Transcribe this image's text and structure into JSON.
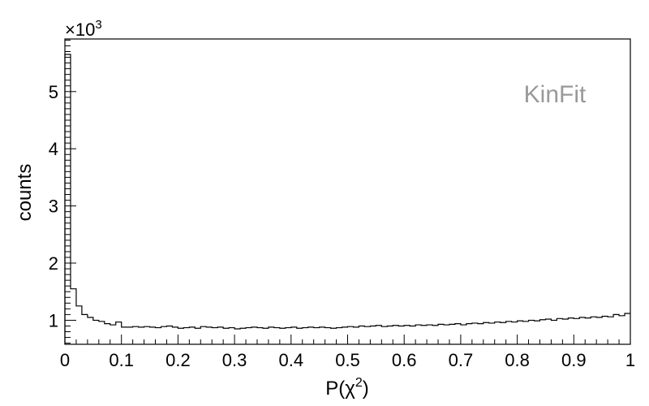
{
  "chart_data": {
    "type": "histogram",
    "xlabel": "P(χ²)",
    "xlabel_base": "P(χ",
    "xlabel_sup": "2",
    "xlabel_close": ")",
    "ylabel": "counts",
    "y_multiplier": "×10³",
    "y_multiplier_base": "×10",
    "y_multiplier_exp": "3",
    "annotation": "KinFit",
    "annotation_color": "#999999",
    "line_color": "#000000",
    "xlim": [
      0,
      1
    ],
    "ylim": [
      0.58,
      5.92
    ],
    "y_unit_scale": 1000,
    "x_ticks": [
      0,
      0.1,
      0.2,
      0.3,
      0.4,
      0.5,
      0.6,
      0.7,
      0.8,
      0.9,
      1
    ],
    "x_tick_labels": [
      "0",
      "0.1",
      "0.2",
      "0.3",
      "0.4",
      "0.5",
      "0.6",
      "0.7",
      "0.8",
      "0.9",
      "1"
    ],
    "y_ticks": [
      1,
      2,
      3,
      4,
      5
    ],
    "y_tick_labels": [
      "1",
      "2",
      "3",
      "4",
      "5"
    ],
    "bin_edges_start": 0,
    "bin_width": 0.01,
    "values": [
      5.65,
      1.55,
      1.25,
      1.1,
      1.05,
      1.0,
      0.98,
      0.94,
      0.92,
      0.97,
      0.88,
      0.88,
      0.89,
      0.88,
      0.89,
      0.88,
      0.87,
      0.89,
      0.9,
      0.88,
      0.86,
      0.87,
      0.88,
      0.86,
      0.89,
      0.88,
      0.87,
      0.88,
      0.86,
      0.87,
      0.85,
      0.86,
      0.87,
      0.88,
      0.87,
      0.86,
      0.88,
      0.87,
      0.86,
      0.87,
      0.88,
      0.86,
      0.87,
      0.88,
      0.87,
      0.88,
      0.87,
      0.86,
      0.87,
      0.88,
      0.89,
      0.88,
      0.9,
      0.89,
      0.9,
      0.91,
      0.89,
      0.9,
      0.91,
      0.9,
      0.91,
      0.9,
      0.92,
      0.91,
      0.92,
      0.91,
      0.93,
      0.92,
      0.93,
      0.94,
      0.92,
      0.94,
      0.95,
      0.94,
      0.96,
      0.95,
      0.97,
      0.96,
      0.98,
      0.97,
      0.99,
      0.98,
      1.0,
      0.99,
      1.01,
      1.02,
      1.0,
      1.03,
      1.02,
      1.04,
      1.03,
      1.05,
      1.04,
      1.06,
      1.05,
      1.07,
      1.06,
      1.1,
      1.08,
      1.12
    ],
    "grid": false
  }
}
